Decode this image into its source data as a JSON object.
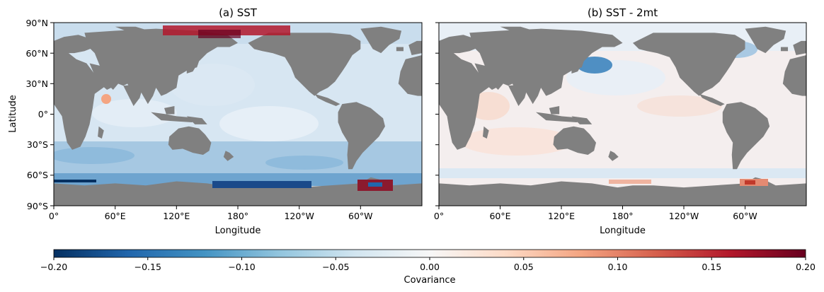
{
  "figure": {
    "panels": [
      {
        "id": "a",
        "title": "(a) SST",
        "xlabel": "Longitude",
        "ylabel": "Latitude",
        "xticks": [
          "0°",
          "60°E",
          "120°E",
          "180°",
          "120°W",
          "60°W"
        ],
        "yticks": [
          "90°N",
          "60°N",
          "30°N",
          "0°",
          "30°S",
          "60°S",
          "90°S"
        ],
        "show_yticklabels": true
      },
      {
        "id": "b",
        "title": "(b) SST - 2mt",
        "xlabel": "Longitude",
        "ylabel": "",
        "xticks": [
          "0°",
          "60°E",
          "120°E",
          "180°",
          "120°W",
          "60°W"
        ],
        "yticks": [],
        "show_yticklabels": false
      }
    ],
    "colorbar": {
      "label": "Covariance",
      "ticks": [
        "−0.20",
        "−0.15",
        "−0.10",
        "−0.05",
        "0.00",
        "0.05",
        "0.10",
        "0.15",
        "0.20"
      ],
      "range": [
        -0.2,
        0.2
      ],
      "colormap": "RdBu_r",
      "colors": [
        "#053061",
        "#2166ac",
        "#4393c3",
        "#92c5de",
        "#d1e5f0",
        "#f7f7f7",
        "#fddbc7",
        "#f4a582",
        "#d6604d",
        "#b2182b",
        "#67001f"
      ]
    },
    "land_color": "#808080"
  }
}
